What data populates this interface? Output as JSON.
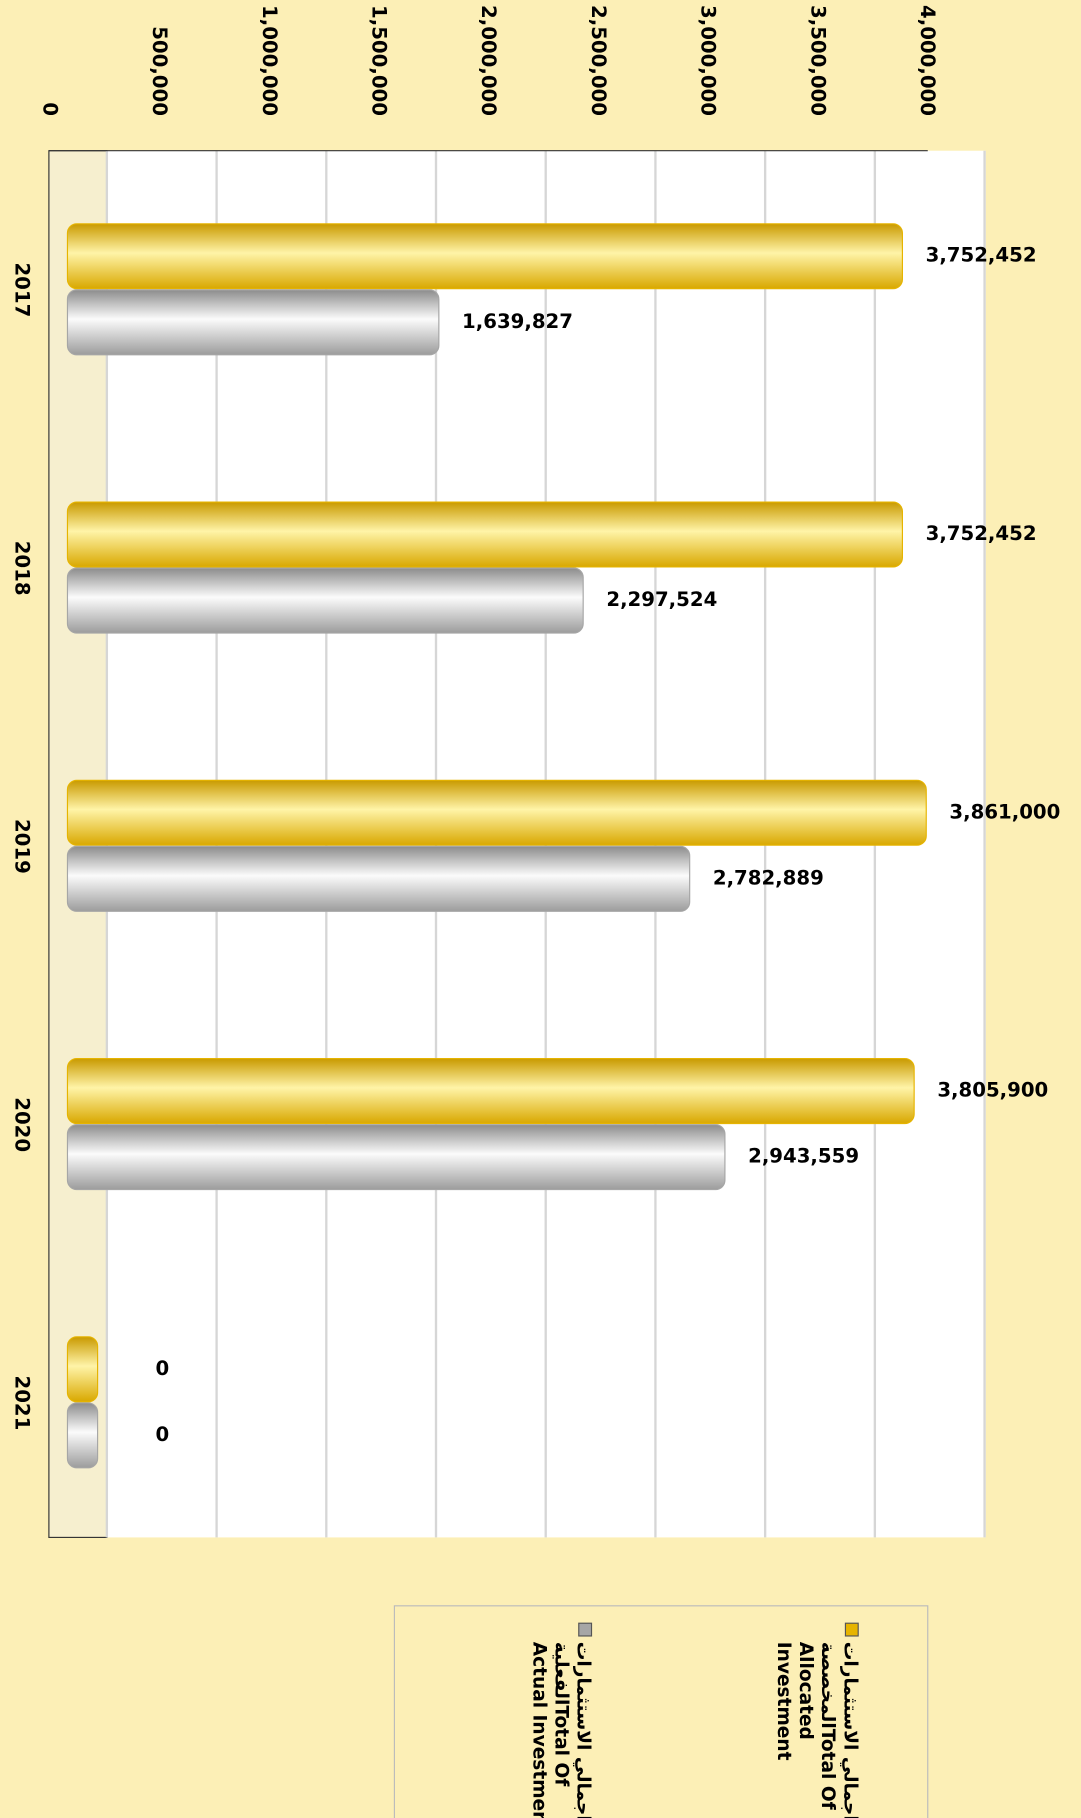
{
  "chart_data": {
    "type": "bar",
    "categories": [
      "2017",
      "2018",
      "2019",
      "2020",
      "2021"
    ],
    "series": [
      {
        "name": "اجمالي الاستثمارات المخصصةTotal Of Allocated Investment",
        "color": "#e6b400",
        "values": [
          3752452,
          3752452,
          3861000,
          3805900,
          0
        ],
        "value_labels": [
          "3,752,452",
          "3,752,452",
          "3,861,000",
          "3,805,900",
          "0"
        ]
      },
      {
        "name": "اجمالي الاستثمارات الفعليةTotal Of Actual Investment",
        "color": "#a6a6a6",
        "values": [
          1639827,
          2297524,
          2782889,
          2943559,
          0
        ],
        "value_labels": [
          "1,639,827",
          "2,297,524",
          "2,782,889",
          "2,943,559",
          "0"
        ]
      }
    ],
    "ylim": [
      0,
      4000000
    ],
    "yticks": [
      0,
      {
        "value": 500000,
        "label": "500,000"
      },
      {
        "value": 1000000,
        "label": "1,000,000"
      },
      {
        "value": 1500000,
        "label": "1,500,000"
      },
      {
        "value": 2000000,
        "label": "2,000,000"
      },
      {
        "value": 2500000,
        "label": "2,500,000"
      },
      {
        "value": 3000000,
        "label": "3,000,000"
      },
      {
        "value": 3500000,
        "label": "3,500,000"
      },
      {
        "value": 4000000,
        "label": "4,000,000"
      }
    ],
    "grid": true
  }
}
